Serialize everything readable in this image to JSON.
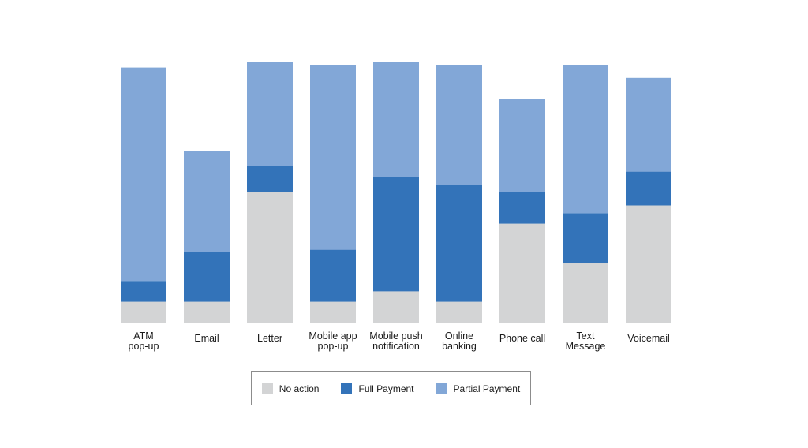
{
  "chart_data": {
    "type": "bar",
    "stacked": true,
    "categories": [
      [
        "ATM",
        "pop-up"
      ],
      [
        "Email"
      ],
      [
        "Letter"
      ],
      [
        "Mobile app",
        "pop-up"
      ],
      [
        "Mobile push",
        "notification"
      ],
      [
        "Online",
        "banking"
      ],
      [
        "Phone call"
      ],
      [
        "Text",
        "Message"
      ],
      [
        "Voicemail"
      ]
    ],
    "series": [
      {
        "name": "No action",
        "color": "#d3d4d5",
        "values": [
          8,
          8,
          50,
          8,
          12,
          8,
          38,
          23,
          45
        ]
      },
      {
        "name": "Full Payment",
        "color": "#3373b9",
        "values": [
          8,
          19,
          10,
          20,
          44,
          45,
          12,
          19,
          13
        ]
      },
      {
        "name": "Partial Payment",
        "color": "#82a7d7",
        "values": [
          82,
          39,
          40,
          71,
          44,
          46,
          36,
          57,
          36
        ]
      }
    ],
    "title": "",
    "xlabel": "",
    "ylabel": "",
    "ylim": [
      0,
      100
    ],
    "grid": false,
    "legend_position": "bottom-center"
  }
}
